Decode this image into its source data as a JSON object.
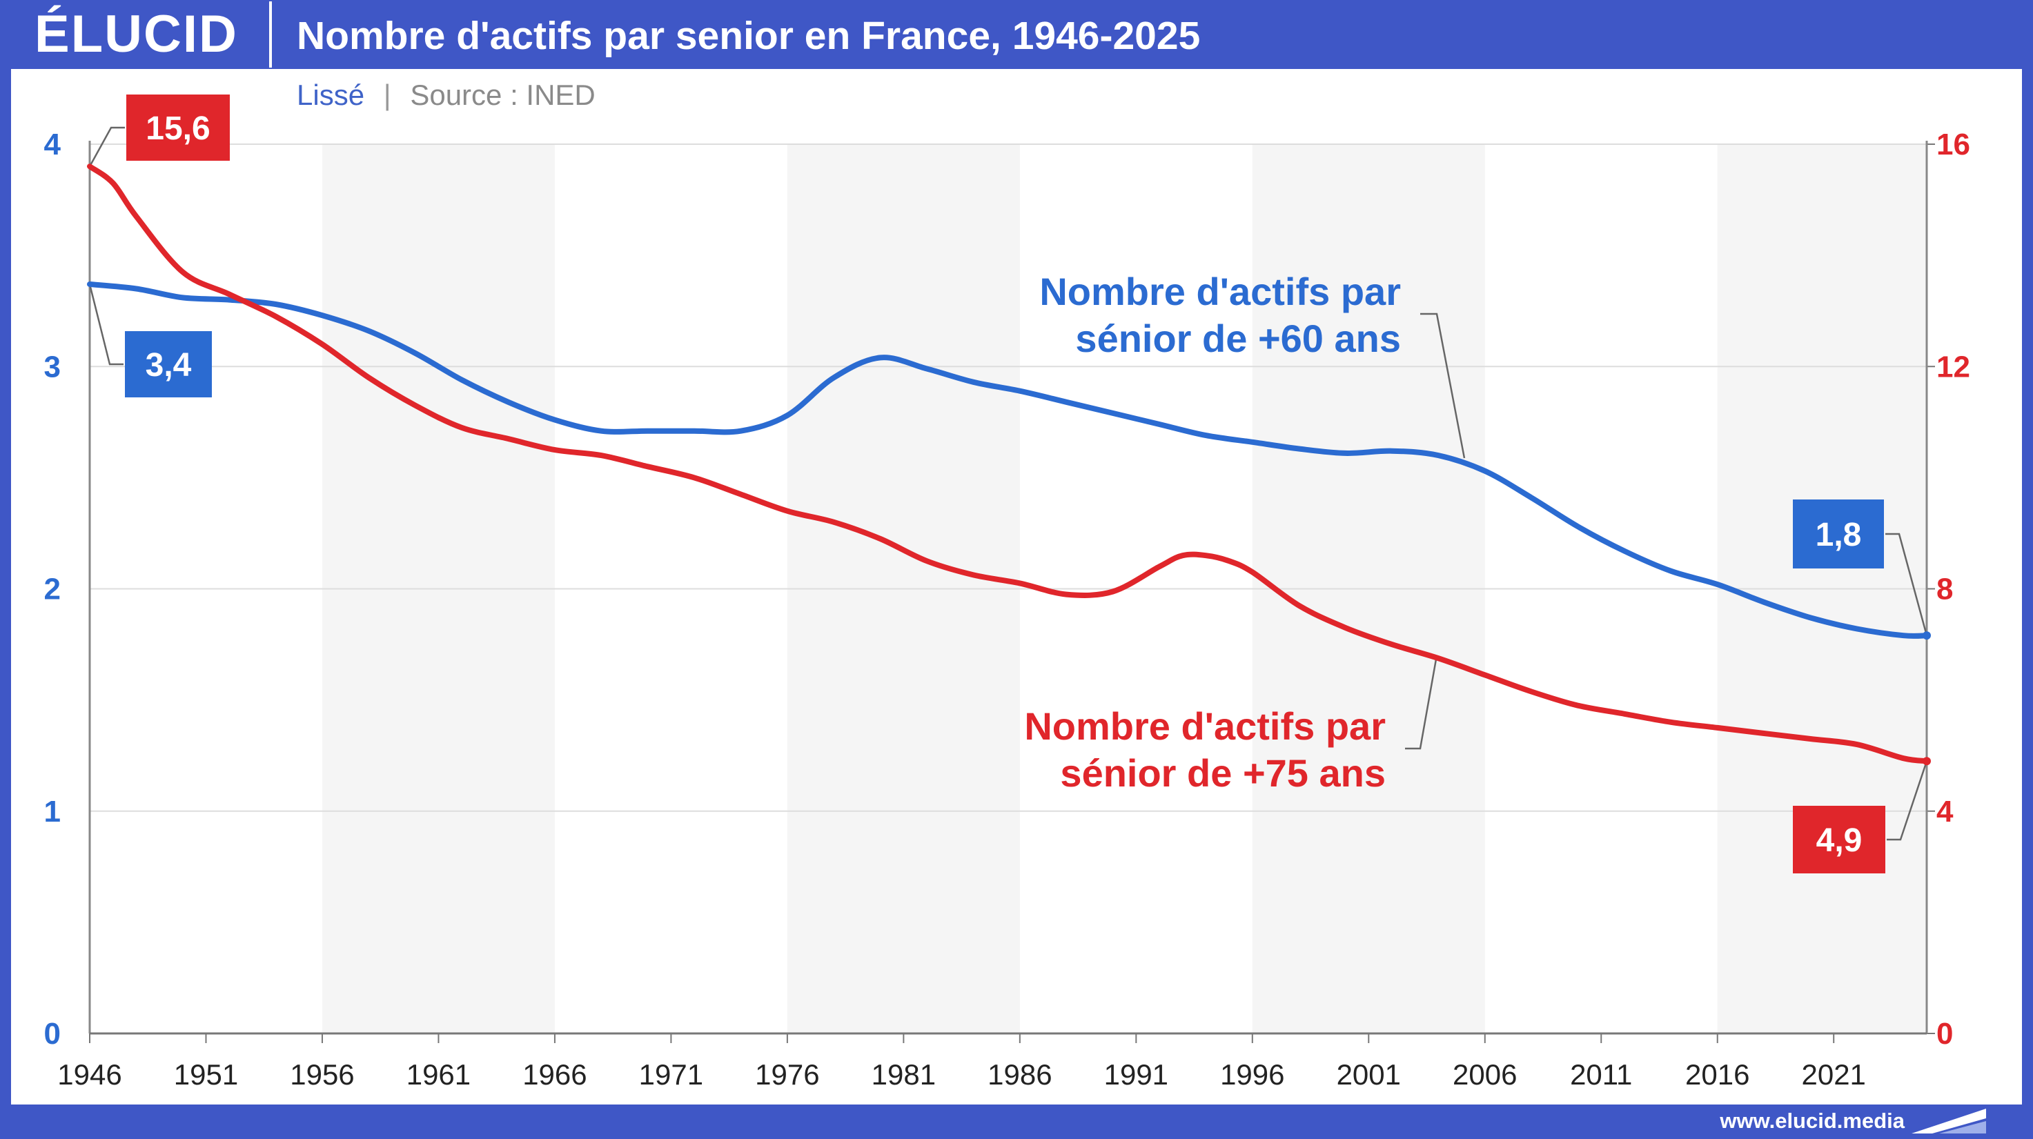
{
  "header": {
    "logo": "ÉLUCID",
    "title": "Nombre d'actifs par senior en France, 1946-2025"
  },
  "subtitle": {
    "smoothing": "Lissé",
    "separator": "|",
    "source": "Source : INED"
  },
  "footer": {
    "url": "www.elucid.media"
  },
  "colors": {
    "background": "#3f57c6",
    "blue_series": "#2b6bd1",
    "red_series": "#e0262b",
    "band": "#f5f5f5",
    "grid": "#dddddd"
  },
  "chart_data": {
    "type": "line",
    "title": "Nombre d'actifs par senior en France, 1946-2025",
    "x_ticks": [
      "1946",
      "1951",
      "1956",
      "1961",
      "1966",
      "1971",
      "1976",
      "1981",
      "1986",
      "1991",
      "1996",
      "2001",
      "2006",
      "2011",
      "2016",
      "2021"
    ],
    "xlim": [
      1946,
      2025
    ],
    "y_left": {
      "ticks": [
        "0",
        "1",
        "2",
        "3",
        "4"
      ],
      "lim": [
        0,
        4
      ]
    },
    "y_right": {
      "ticks": [
        "0",
        "4",
        "8",
        "12",
        "16"
      ],
      "lim": [
        0,
        16
      ]
    },
    "shaded_bands": [
      [
        1956,
        1966
      ],
      [
        1976,
        1986
      ],
      [
        1996,
        2006
      ],
      [
        2016,
        2025
      ]
    ],
    "grid": true,
    "series": [
      {
        "name": "Nombre d'actifs par sénior de +60 ans",
        "axis": "left",
        "color": "#2b6bd1",
        "x": [
          1946,
          1948,
          1950,
          1952,
          1954,
          1956,
          1958,
          1960,
          1962,
          1964,
          1966,
          1968,
          1970,
          1972,
          1974,
          1976,
          1978,
          1980,
          1982,
          1984,
          1986,
          1988,
          1990,
          1992,
          1994,
          1996,
          1998,
          2000,
          2002,
          2004,
          2006,
          2008,
          2010,
          2012,
          2014,
          2016,
          2018,
          2020,
          2022,
          2024,
          2025
        ],
        "values": [
          3.37,
          3.35,
          3.31,
          3.3,
          3.28,
          3.23,
          3.16,
          3.06,
          2.94,
          2.84,
          2.76,
          2.71,
          2.71,
          2.71,
          2.71,
          2.78,
          2.95,
          3.04,
          2.99,
          2.93,
          2.89,
          2.84,
          2.79,
          2.74,
          2.69,
          2.66,
          2.63,
          2.61,
          2.62,
          2.6,
          2.53,
          2.41,
          2.28,
          2.17,
          2.08,
          2.02,
          1.94,
          1.87,
          1.82,
          1.79,
          1.79
        ]
      },
      {
        "name": "Nombre d'actifs par sénior de +75 ans",
        "axis": "right",
        "color": "#e0262b",
        "x": [
          1946,
          1947,
          1948,
          1950,
          1952,
          1954,
          1956,
          1958,
          1960,
          1962,
          1964,
          1966,
          1968,
          1970,
          1972,
          1974,
          1976,
          1978,
          1980,
          1982,
          1984,
          1986,
          1988,
          1990,
          1992,
          1993,
          1994,
          1995,
          1996,
          1998,
          2000,
          2002,
          2004,
          2006,
          2008,
          2010,
          2012,
          2014,
          2016,
          2018,
          2020,
          2022,
          2024,
          2025
        ],
        "values": [
          15.6,
          15.3,
          14.7,
          13.7,
          13.3,
          12.9,
          12.4,
          11.8,
          11.3,
          10.9,
          10.7,
          10.5,
          10.4,
          10.2,
          10.0,
          9.7,
          9.4,
          9.2,
          8.9,
          8.5,
          8.25,
          8.1,
          7.9,
          7.95,
          8.4,
          8.6,
          8.6,
          8.5,
          8.3,
          7.7,
          7.3,
          7.0,
          6.75,
          6.45,
          6.15,
          5.9,
          5.75,
          5.6,
          5.5,
          5.4,
          5.3,
          5.2,
          4.95,
          4.9
        ]
      }
    ],
    "annotations": [
      {
        "id": "blue-start",
        "text": "3,4",
        "color": "#2b6bd1"
      },
      {
        "id": "red-start",
        "text": "15,6",
        "color": "#e0262b"
      },
      {
        "id": "blue-end",
        "text": "1,8",
        "color": "#2b6bd1"
      },
      {
        "id": "red-end",
        "text": "4,9",
        "color": "#e0262b"
      }
    ],
    "series_labels": {
      "blue": [
        "Nombre d'actifs par",
        "sénior de +60 ans"
      ],
      "red": [
        "Nombre d'actifs par",
        "sénior de +75 ans"
      ]
    }
  }
}
